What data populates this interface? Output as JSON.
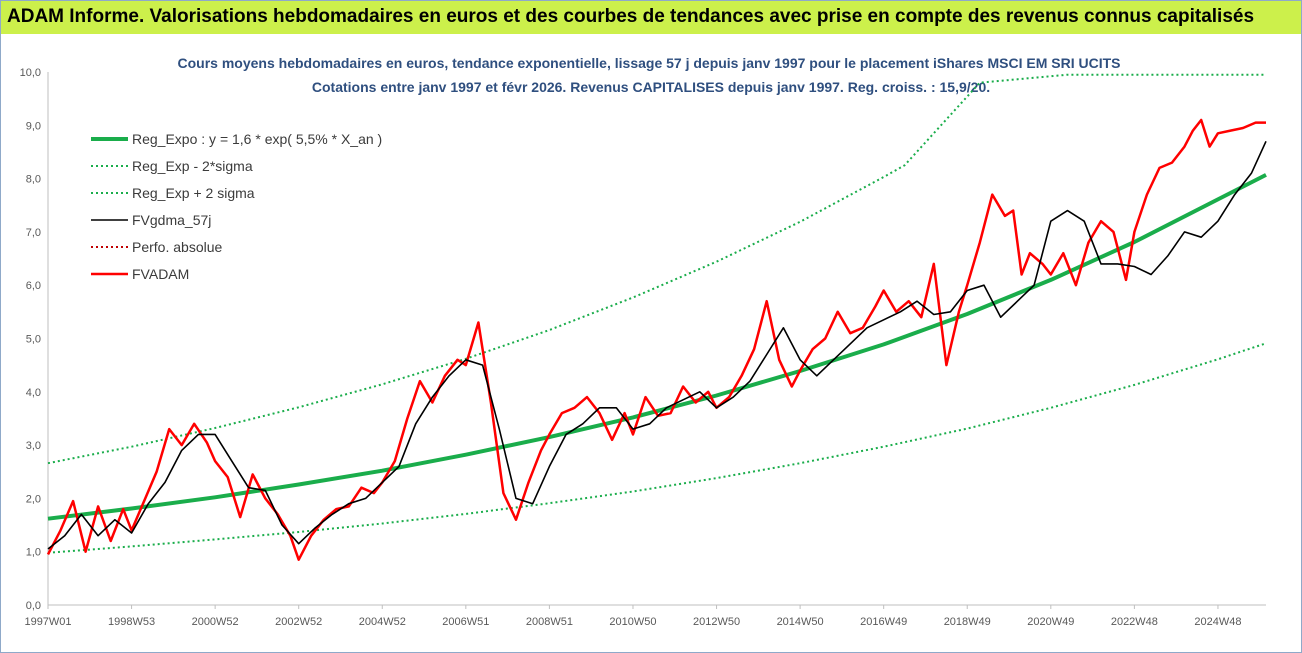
{
  "header": {
    "banner_title": "ADAM Informe. Valorisations hebdomadaires en euros et des courbes de tendances avec prise en compte des revenus connus capitalisés",
    "banner_color": "#ccf04b"
  },
  "chart_data": {
    "type": "line",
    "title": "Cours moyens hebdomadaires en euros, tendance exponentielle, lissage 57 j depuis janv 1997 pour le placement iShares MSCI EM SRI UCITS",
    "subtitle": "Cotations entre janv 1997 et févr 2026. Revenus CAPITALISES depuis janv 1997. Reg. croiss. : 15,9/20.",
    "x_ticks": [
      "1997W01",
      "1998W53",
      "2000W52",
      "2002W52",
      "2004W52",
      "2006W51",
      "2008W51",
      "2010W50",
      "2012W50",
      "2014W50",
      "2016W49",
      "2018W49",
      "2020W49",
      "2022W48",
      "2024W48"
    ],
    "x_tick_years": [
      1997.0,
      1999.0,
      2001.0,
      2003.0,
      2005.0,
      2007.0,
      2009.0,
      2011.0,
      2013.0,
      2015.0,
      2017.0,
      2019.0,
      2021.0,
      2023.0,
      2025.0
    ],
    "xlim": [
      1997.0,
      2026.15
    ],
    "y_ticks": [
      "0,0",
      "1,0",
      "2,0",
      "3,0",
      "4,0",
      "5,0",
      "6,0",
      "7,0",
      "8,0",
      "9,0",
      "10,0"
    ],
    "ylim": [
      0,
      10
    ],
    "grid": false,
    "legend_position": "top-left",
    "series": [
      {
        "name": "Reg_Expo : y = 1,6 * exp( 5,5% *  X_an )",
        "color": "#1aad4b",
        "style": "solid-thick",
        "x": [
          1997,
          1999,
          2001,
          2003,
          2005,
          2007,
          2009,
          2011,
          2013,
          2015,
          2017,
          2019,
          2021,
          2023,
          2025,
          2026.15
        ],
        "y": [
          1.62,
          1.81,
          2.02,
          2.26,
          2.52,
          2.82,
          3.15,
          3.52,
          3.93,
          4.39,
          4.89,
          5.46,
          6.1,
          6.81,
          7.61,
          8.07
        ]
      },
      {
        "name": "Reg_Exp - 2*sigma",
        "color": "#1aad4b",
        "style": "dotted",
        "x": [
          1997,
          1999,
          2001,
          2003,
          2005,
          2007,
          2009,
          2011,
          2013,
          2015,
          2017,
          2019,
          2021,
          2023,
          2025,
          2026.15
        ],
        "y": [
          0.98,
          1.1,
          1.23,
          1.37,
          1.53,
          1.71,
          1.91,
          2.13,
          2.38,
          2.66,
          2.97,
          3.31,
          3.7,
          4.13,
          4.61,
          4.91
        ]
      },
      {
        "name": "Reg_Exp + 2 sigma",
        "color": "#1aad4b",
        "style": "dotted",
        "x": [
          1997,
          1999,
          2001,
          2003,
          2005,
          2007,
          2009,
          2011,
          2013,
          2015,
          2017,
          2017.5,
          2019.3,
          2021.4,
          2023.5,
          2026.15
        ],
        "y": [
          2.66,
          2.97,
          3.32,
          3.71,
          4.14,
          4.62,
          5.16,
          5.77,
          6.44,
          7.19,
          8.03,
          8.25,
          9.8,
          9.95,
          9.95,
          9.95
        ]
      },
      {
        "name": "FVgdma_57j",
        "color": "#000000",
        "style": "solid",
        "x": [
          1997,
          1997.4,
          1997.8,
          1998.2,
          1998.6,
          1999.0,
          1999.4,
          1999.8,
          2000.2,
          2000.6,
          2001.0,
          2001.4,
          2001.8,
          2002.2,
          2002.6,
          2003.0,
          2003.4,
          2003.8,
          2004.2,
          2004.6,
          2005.0,
          2005.4,
          2005.8,
          2006.2,
          2006.6,
          2007.0,
          2007.4,
          2007.8,
          2008.2,
          2008.6,
          2009.0,
          2009.4,
          2009.8,
          2010.2,
          2010.6,
          2011.0,
          2011.4,
          2011.8,
          2012.2,
          2012.6,
          2013.0,
          2013.4,
          2013.8,
          2014.2,
          2014.6,
          2015.0,
          2015.4,
          2015.8,
          2016.2,
          2016.6,
          2017.0,
          2017.4,
          2017.8,
          2018.2,
          2018.6,
          2019.0,
          2019.4,
          2019.8,
          2020.2,
          2020.6,
          2021.0,
          2021.4,
          2021.8,
          2022.2,
          2022.6,
          2023.0,
          2023.4,
          2023.8,
          2024.2,
          2024.6,
          2025.0,
          2025.4,
          2025.8,
          2026.15
        ],
        "y": [
          1.05,
          1.3,
          1.7,
          1.3,
          1.6,
          1.35,
          1.9,
          2.3,
          2.9,
          3.2,
          3.2,
          2.7,
          2.2,
          2.15,
          1.5,
          1.15,
          1.45,
          1.7,
          1.9,
          2.0,
          2.3,
          2.6,
          3.4,
          3.9,
          4.3,
          4.6,
          4.5,
          3.3,
          2.0,
          1.9,
          2.6,
          3.2,
          3.4,
          3.7,
          3.7,
          3.3,
          3.4,
          3.7,
          3.85,
          4.0,
          3.7,
          3.9,
          4.2,
          4.7,
          5.2,
          4.6,
          4.3,
          4.6,
          4.9,
          5.2,
          5.35,
          5.5,
          5.7,
          5.45,
          5.5,
          5.9,
          6.0,
          5.4,
          5.7,
          6.0,
          7.2,
          7.4,
          7.2,
          6.4,
          6.4,
          6.35,
          6.2,
          6.55,
          7.0,
          6.9,
          7.2,
          7.7,
          8.1,
          8.7
        ]
      },
      {
        "name": "Perfo. absolue",
        "color": "#c00000",
        "style": "dotted",
        "x": [],
        "y": []
      },
      {
        "name": "FVADAM",
        "color": "#ff0000",
        "style": "solid-thick",
        "x": [
          1997,
          1997.3,
          1997.6,
          1997.9,
          1998.2,
          1998.5,
          1998.8,
          1999.0,
          1999.3,
          1999.6,
          1999.9,
          2000.2,
          2000.5,
          2000.8,
          2001.0,
          2001.3,
          2001.6,
          2001.9,
          2002.2,
          2002.5,
          2002.8,
          2003.0,
          2003.3,
          2003.6,
          2003.9,
          2004.2,
          2004.5,
          2004.8,
          2005.0,
          2005.3,
          2005.6,
          2005.9,
          2006.2,
          2006.5,
          2006.8,
          2007.0,
          2007.3,
          2007.6,
          2007.9,
          2008.2,
          2008.5,
          2008.8,
          2009.0,
          2009.3,
          2009.6,
          2009.9,
          2010.2,
          2010.5,
          2010.8,
          2011.0,
          2011.3,
          2011.6,
          2011.9,
          2012.2,
          2012.5,
          2012.8,
          2013.0,
          2013.3,
          2013.6,
          2013.9,
          2014.2,
          2014.5,
          2014.8,
          2015.0,
          2015.3,
          2015.6,
          2015.9,
          2016.2,
          2016.5,
          2016.8,
          2017.0,
          2017.3,
          2017.6,
          2017.9,
          2018.2,
          2018.5,
          2018.8,
          2019.0,
          2019.3,
          2019.6,
          2019.9,
          2020.1,
          2020.3,
          2020.5,
          2020.8,
          2021.0,
          2021.3,
          2021.6,
          2021.9,
          2022.2,
          2022.5,
          2022.8,
          2023.0,
          2023.3,
          2023.6,
          2023.9,
          2024.2,
          2024.4,
          2024.6,
          2024.8,
          2025.0,
          2025.3,
          2025.6,
          2025.9,
          2026.15
        ],
        "y": [
          0.95,
          1.4,
          1.95,
          1.0,
          1.85,
          1.2,
          1.8,
          1.4,
          1.95,
          2.5,
          3.3,
          3.0,
          3.4,
          3.05,
          2.7,
          2.4,
          1.65,
          2.45,
          2.0,
          1.7,
          1.3,
          0.85,
          1.3,
          1.6,
          1.8,
          1.85,
          2.2,
          2.1,
          2.3,
          2.7,
          3.5,
          4.2,
          3.8,
          4.3,
          4.6,
          4.5,
          5.3,
          3.8,
          2.1,
          1.6,
          2.3,
          2.9,
          3.2,
          3.6,
          3.7,
          3.9,
          3.6,
          3.1,
          3.6,
          3.2,
          3.9,
          3.55,
          3.6,
          4.1,
          3.8,
          4.0,
          3.7,
          3.9,
          4.3,
          4.8,
          5.7,
          4.6,
          4.1,
          4.4,
          4.8,
          5.0,
          5.5,
          5.1,
          5.2,
          5.6,
          5.9,
          5.5,
          5.7,
          5.4,
          6.4,
          4.5,
          5.5,
          6.0,
          6.8,
          7.7,
          7.3,
          7.4,
          6.2,
          6.6,
          6.4,
          6.2,
          6.6,
          6.0,
          6.8,
          7.2,
          7.0,
          6.1,
          7.0,
          7.7,
          8.2,
          8.3,
          8.6,
          8.9,
          9.1,
          8.6,
          8.85,
          8.9,
          8.95,
          9.05,
          9.05
        ]
      }
    ]
  }
}
